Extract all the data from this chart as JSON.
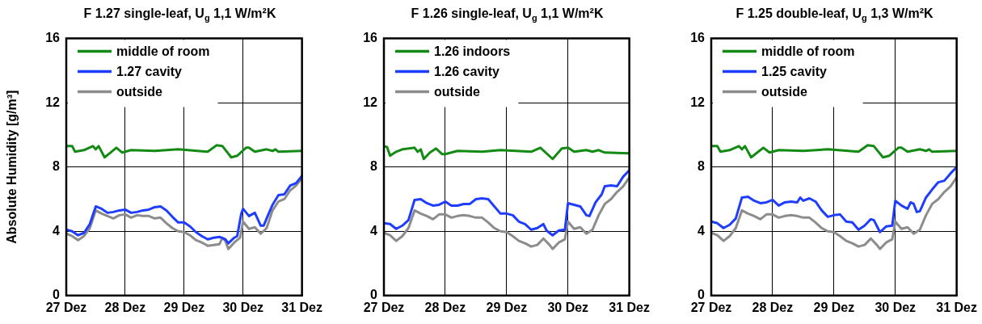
{
  "chart_data": [
    {
      "type": "line",
      "title": "F 1.27 single-leaf, U$_{g}$ 1,1 W/m²K",
      "ylabel": "Absolute Humidity [g/m³]",
      "xlim": [
        27,
        31
      ],
      "xticks": [
        {
          "value": 27,
          "label": "27 Dez"
        },
        {
          "value": 28,
          "label": "28 Dez"
        },
        {
          "value": 29,
          "label": "29 Dez"
        },
        {
          "value": 30,
          "label": "30 Dez"
        },
        {
          "value": 31,
          "label": "31 Dez"
        }
      ],
      "ylim": [
        0,
        16
      ],
      "yticks": [
        0,
        4,
        8,
        12,
        16
      ],
      "grid": true,
      "legend": "top left",
      "marker": "none",
      "line_style": "solid",
      "series": [
        {
          "name": "middle of room",
          "color": "#138a13",
          "x": [
            27.0,
            27.1,
            27.15,
            27.3,
            27.45,
            27.5,
            27.55,
            27.65,
            27.75,
            27.85,
            27.95,
            28.1,
            28.5,
            28.9,
            29.4,
            29.55,
            29.65,
            29.8,
            29.9,
            30.05,
            30.1,
            30.2,
            30.4,
            30.5,
            30.55,
            30.6,
            31.0
          ],
          "values": [
            9.3,
            9.3,
            8.95,
            9.05,
            9.3,
            9.1,
            9.3,
            8.6,
            8.9,
            9.2,
            8.9,
            9.05,
            9.0,
            9.1,
            8.95,
            9.35,
            9.3,
            8.6,
            8.7,
            9.2,
            9.2,
            8.95,
            9.1,
            9.0,
            9.1,
            8.95,
            9.0
          ]
        },
        {
          "name": "1.27 cavity",
          "color": "#1f3dff",
          "x": [
            27.0,
            27.1,
            27.2,
            27.3,
            27.4,
            27.5,
            27.6,
            27.7,
            27.8,
            27.9,
            28.0,
            28.1,
            28.2,
            28.3,
            28.4,
            28.5,
            28.6,
            28.7,
            28.8,
            28.9,
            29.0,
            29.1,
            29.2,
            29.3,
            29.4,
            29.5,
            29.6,
            29.7,
            29.75,
            29.85,
            29.9,
            29.97,
            30.0,
            30.1,
            30.2,
            30.3,
            30.35,
            30.4,
            30.5,
            30.6,
            30.7,
            30.8,
            30.9,
            31.0
          ],
          "values": [
            4.1,
            4.0,
            3.75,
            3.9,
            4.45,
            5.55,
            5.4,
            5.15,
            5.2,
            5.3,
            5.35,
            5.15,
            5.2,
            5.3,
            5.35,
            5.5,
            5.55,
            5.3,
            4.9,
            4.55,
            4.55,
            4.3,
            3.95,
            3.7,
            3.5,
            3.6,
            3.65,
            3.5,
            3.25,
            3.6,
            3.7,
            5.1,
            5.4,
            4.95,
            5.15,
            4.35,
            4.35,
            4.8,
            5.65,
            6.25,
            6.3,
            6.85,
            7.0,
            7.45
          ]
        },
        {
          "name": "outside",
          "color": "#8c8c8c",
          "x": [
            27.0,
            27.1,
            27.2,
            27.3,
            27.4,
            27.5,
            27.6,
            27.7,
            27.8,
            27.9,
            28.0,
            28.1,
            28.2,
            28.3,
            28.4,
            28.5,
            28.6,
            28.7,
            28.8,
            28.9,
            29.0,
            29.1,
            29.2,
            29.3,
            29.4,
            29.5,
            29.6,
            29.65,
            29.7,
            29.75,
            29.85,
            29.95,
            30.0,
            30.1,
            30.2,
            30.3,
            30.4,
            30.5,
            30.6,
            30.7,
            30.8,
            30.9,
            31.0
          ],
          "values": [
            3.85,
            3.7,
            3.45,
            3.7,
            4.2,
            5.3,
            5.1,
            4.95,
            4.8,
            5.0,
            5.05,
            4.85,
            5.0,
            4.95,
            4.95,
            4.8,
            4.85,
            4.5,
            4.2,
            4.0,
            3.95,
            3.75,
            3.45,
            3.3,
            3.1,
            3.15,
            3.2,
            3.6,
            3.4,
            2.9,
            3.3,
            3.6,
            4.6,
            4.15,
            4.25,
            3.85,
            4.2,
            5.3,
            5.85,
            6.0,
            6.55,
            6.85,
            7.3
          ]
        }
      ]
    },
    {
      "type": "line",
      "title": "F 1.26  single-leaf, U$_{g}$ 1,1 W/m²K",
      "xlim": [
        27,
        31
      ],
      "xticks": [
        {
          "value": 27,
          "label": "27 Dez"
        },
        {
          "value": 28,
          "label": "28 Dez"
        },
        {
          "value": 29,
          "label": "29 Dez"
        },
        {
          "value": 30,
          "label": "30 Dez"
        },
        {
          "value": 31,
          "label": "31 Dez"
        }
      ],
      "ylim": [
        0,
        16
      ],
      "yticks": [
        0,
        4,
        8,
        12,
        16
      ],
      "grid": true,
      "legend": "top left",
      "marker": "none",
      "line_style": "solid",
      "series": [
        {
          "name": "1.26 indoors",
          "color": "#138a13",
          "x": [
            27.0,
            27.05,
            27.1,
            27.2,
            27.3,
            27.5,
            27.55,
            27.6,
            27.65,
            27.75,
            27.85,
            27.95,
            28.0,
            28.2,
            28.6,
            28.9,
            29.4,
            29.55,
            29.75,
            29.9,
            30.0,
            30.1,
            30.3,
            30.4,
            30.5,
            30.6,
            31.0
          ],
          "values": [
            9.3,
            9.25,
            8.7,
            8.95,
            9.1,
            9.2,
            8.95,
            9.1,
            8.5,
            8.9,
            9.15,
            8.8,
            8.8,
            9.0,
            8.95,
            9.05,
            8.95,
            9.2,
            8.5,
            9.15,
            9.2,
            8.95,
            9.05,
            8.95,
            9.05,
            8.9,
            8.85
          ]
        },
        {
          "name": "1.26 cavity",
          "color": "#1f3dff",
          "x": [
            27.0,
            27.1,
            27.2,
            27.3,
            27.4,
            27.5,
            27.6,
            27.7,
            27.8,
            27.9,
            28.0,
            28.1,
            28.2,
            28.3,
            28.4,
            28.5,
            28.6,
            28.7,
            28.8,
            28.9,
            29.0,
            29.1,
            29.2,
            29.3,
            29.4,
            29.5,
            29.6,
            29.65,
            29.75,
            29.85,
            29.95,
            30.0,
            30.1,
            30.2,
            30.3,
            30.35,
            30.45,
            30.55,
            30.6,
            30.7,
            30.8,
            30.9,
            31.0
          ],
          "values": [
            4.5,
            4.45,
            4.15,
            4.35,
            4.7,
            5.95,
            6.0,
            5.75,
            5.6,
            5.65,
            5.85,
            5.6,
            5.6,
            5.7,
            5.7,
            6.0,
            6.05,
            6.0,
            5.55,
            5.1,
            5.1,
            5.0,
            4.6,
            4.45,
            4.1,
            4.2,
            4.45,
            4.05,
            3.75,
            4.05,
            4.1,
            5.75,
            5.65,
            5.55,
            5.0,
            4.95,
            5.8,
            6.3,
            6.8,
            6.85,
            6.8,
            7.4,
            7.8
          ]
        },
        {
          "name": "outside",
          "color": "#8c8c8c",
          "x": [
            27.0,
            27.1,
            27.2,
            27.3,
            27.4,
            27.5,
            27.6,
            27.7,
            27.8,
            27.9,
            28.0,
            28.1,
            28.2,
            28.3,
            28.4,
            28.5,
            28.6,
            28.7,
            28.8,
            28.9,
            29.0,
            29.1,
            29.2,
            29.3,
            29.4,
            29.5,
            29.6,
            29.7,
            29.75,
            29.85,
            29.95,
            30.0,
            30.1,
            30.2,
            30.3,
            30.4,
            30.5,
            30.6,
            30.7,
            30.8,
            30.9,
            31.0
          ],
          "values": [
            3.9,
            3.75,
            3.4,
            3.7,
            4.2,
            5.3,
            5.1,
            4.95,
            4.75,
            5.05,
            5.05,
            4.85,
            4.95,
            5.0,
            4.95,
            4.85,
            4.85,
            4.55,
            4.2,
            4.0,
            3.95,
            3.7,
            3.4,
            3.25,
            3.05,
            3.15,
            3.55,
            3.15,
            2.9,
            3.3,
            3.5,
            4.6,
            4.15,
            4.25,
            3.85,
            4.1,
            5.0,
            5.7,
            6.0,
            6.45,
            6.8,
            7.35
          ]
        }
      ]
    },
    {
      "type": "line",
      "title": "F 1.25  double-leaf, U$_{g}$ 1,3 W/m²K",
      "xlim": [
        27,
        31
      ],
      "xticks": [
        {
          "value": 27,
          "label": "27 Dez"
        },
        {
          "value": 28,
          "label": "28 Dez"
        },
        {
          "value": 29,
          "label": "29 Dez"
        },
        {
          "value": 30,
          "label": "30 Dez"
        },
        {
          "value": 31,
          "label": "31 Dez"
        }
      ],
      "ylim": [
        0,
        16
      ],
      "yticks": [
        0,
        4,
        8,
        12,
        16
      ],
      "grid": true,
      "legend": "top left",
      "marker": "none",
      "line_style": "solid",
      "series": [
        {
          "name": "middle of room",
          "color": "#138a13",
          "x": [
            27.0,
            27.1,
            27.15,
            27.3,
            27.45,
            27.5,
            27.55,
            27.65,
            27.75,
            27.85,
            27.95,
            28.1,
            28.5,
            28.9,
            29.4,
            29.55,
            29.65,
            29.8,
            29.9,
            30.05,
            30.1,
            30.2,
            30.4,
            30.5,
            30.55,
            30.6,
            31.0
          ],
          "values": [
            9.3,
            9.3,
            8.95,
            9.05,
            9.3,
            9.1,
            9.3,
            8.6,
            8.9,
            9.2,
            8.9,
            9.05,
            9.0,
            9.1,
            8.95,
            9.35,
            9.3,
            8.6,
            8.7,
            9.2,
            9.2,
            8.95,
            9.1,
            9.0,
            9.1,
            8.95,
            9.0
          ]
        },
        {
          "name": "1.25 cavity",
          "color": "#1f3dff",
          "x": [
            27.0,
            27.1,
            27.2,
            27.3,
            27.4,
            27.5,
            27.6,
            27.7,
            27.8,
            27.9,
            28.0,
            28.1,
            28.2,
            28.3,
            28.4,
            28.45,
            28.5,
            28.6,
            28.7,
            28.8,
            28.9,
            29.0,
            29.1,
            29.2,
            29.3,
            29.4,
            29.5,
            29.6,
            29.65,
            29.75,
            29.85,
            29.95,
            30.0,
            30.1,
            30.2,
            30.25,
            30.3,
            30.35,
            30.4,
            30.5,
            30.6,
            30.7,
            30.8,
            30.9,
            31.0
          ],
          "values": [
            4.6,
            4.5,
            4.2,
            4.4,
            4.8,
            6.1,
            6.15,
            5.9,
            5.75,
            5.8,
            5.95,
            5.6,
            5.8,
            5.85,
            5.8,
            6.1,
            5.9,
            6.05,
            5.85,
            5.3,
            4.9,
            5.0,
            5.05,
            4.6,
            4.55,
            4.1,
            4.35,
            4.75,
            4.7,
            3.95,
            4.3,
            4.35,
            5.9,
            5.6,
            5.4,
            5.8,
            5.7,
            5.2,
            5.25,
            6.1,
            6.6,
            7.05,
            7.15,
            7.6,
            8.0
          ]
        },
        {
          "name": "outside",
          "color": "#8c8c8c",
          "x": [
            27.0,
            27.1,
            27.2,
            27.3,
            27.4,
            27.5,
            27.6,
            27.7,
            27.8,
            27.9,
            28.0,
            28.1,
            28.2,
            28.3,
            28.4,
            28.5,
            28.6,
            28.7,
            28.8,
            28.9,
            29.0,
            29.1,
            29.2,
            29.3,
            29.4,
            29.5,
            29.6,
            29.7,
            29.75,
            29.85,
            29.95,
            30.0,
            30.1,
            30.2,
            30.3,
            30.4,
            30.5,
            30.6,
            30.7,
            30.8,
            30.9,
            31.0
          ],
          "values": [
            3.9,
            3.75,
            3.4,
            3.7,
            4.2,
            5.3,
            5.1,
            4.95,
            4.75,
            5.05,
            5.05,
            4.85,
            4.95,
            5.0,
            4.95,
            4.85,
            4.85,
            4.55,
            4.2,
            4.0,
            3.95,
            3.7,
            3.4,
            3.25,
            3.05,
            3.15,
            3.55,
            3.15,
            2.9,
            3.3,
            3.5,
            4.6,
            4.15,
            4.25,
            3.85,
            4.1,
            5.0,
            5.7,
            6.0,
            6.45,
            6.8,
            7.35
          ]
        }
      ]
    }
  ]
}
